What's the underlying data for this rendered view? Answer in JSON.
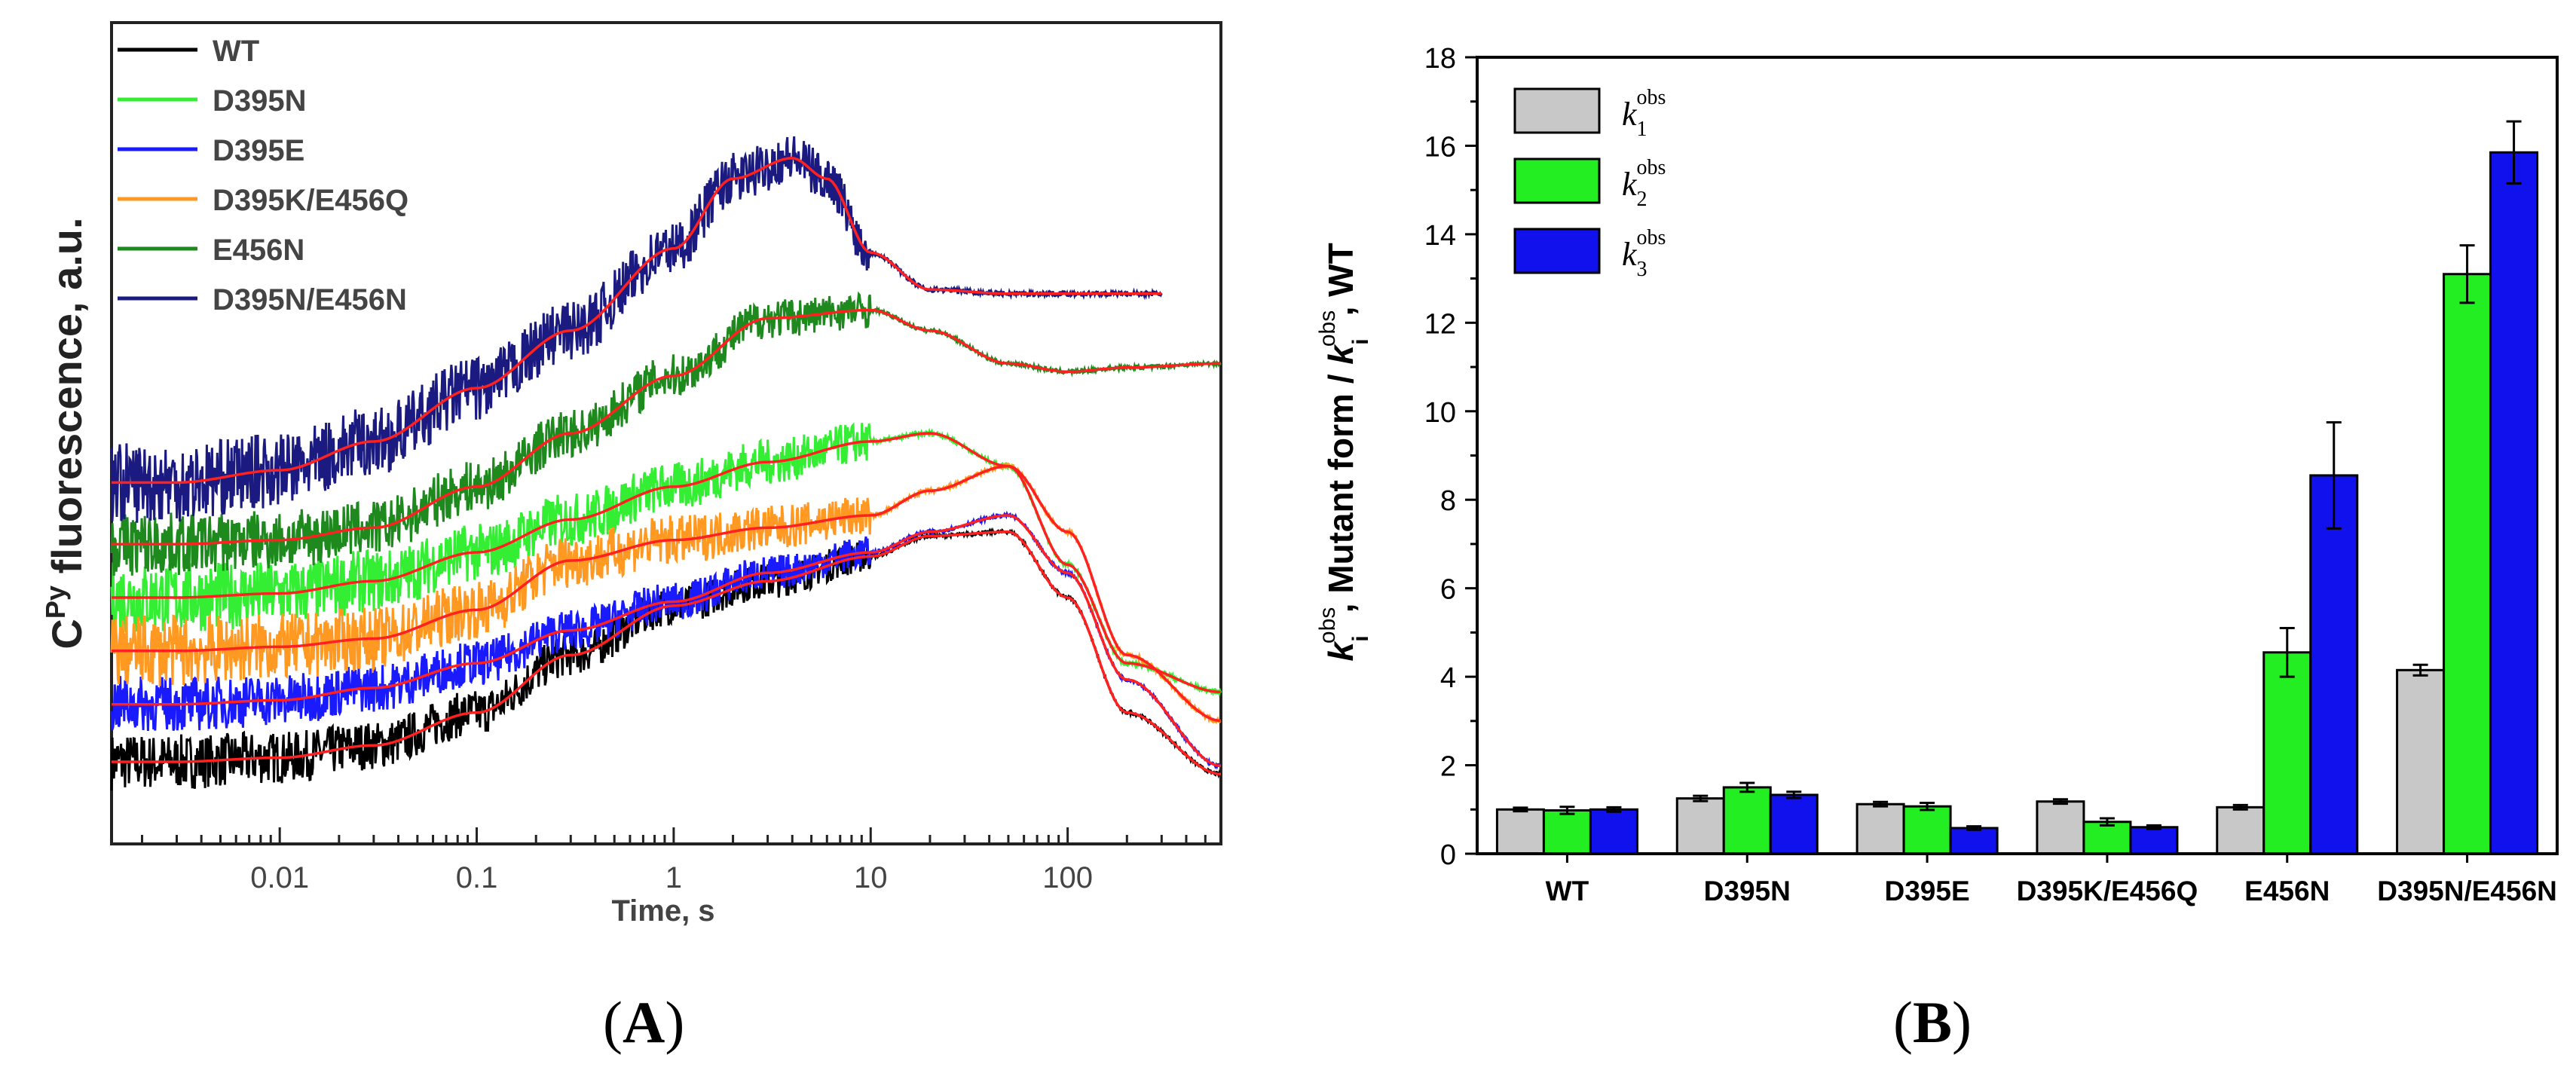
{
  "panels": {
    "a_label": "A",
    "b_label": "B"
  },
  "panel_a": {
    "y_label_base": "C",
    "y_label_sup": "Py",
    "y_label_rest": " fluorescence, a.u.",
    "x_label": "Time, s",
    "x_ticks": [
      "0.01",
      "0.1",
      "1",
      "10",
      "100"
    ],
    "legend": [
      "WT",
      "D395N",
      "D395E",
      "D395K/E456Q",
      "E456N",
      "D395N/E456N"
    ],
    "fit_color": "#ff2020"
  },
  "chart_data": [
    {
      "type": "line",
      "title": "",
      "xlabel": "Time, s",
      "ylabel": "CPy fluorescence, a.u.",
      "xscale": "log",
      "xlim": [
        0.0014,
        600
      ],
      "ylim": [
        0,
        10
      ],
      "x_ticks": [
        0.01,
        0.1,
        1,
        10,
        100
      ],
      "legend_position": "top-left",
      "series": [
        {
          "name": "WT",
          "color": "#000000",
          "noise": 0.35,
          "x": [
            0.0014,
            0.003,
            0.01,
            0.03,
            0.1,
            0.3,
            1,
            3,
            10,
            20,
            50,
            100,
            200,
            600
          ],
          "y": [
            1.0,
            1.0,
            1.05,
            1.2,
            1.6,
            2.3,
            2.9,
            3.2,
            3.5,
            3.75,
            3.8,
            3.0,
            1.6,
            0.85
          ]
        },
        {
          "name": "D395N",
          "color": "#33ee33",
          "noise": 0.45,
          "x": [
            0.0014,
            0.003,
            0.01,
            0.03,
            0.1,
            0.3,
            1,
            3,
            10,
            20,
            50,
            100,
            200,
            600
          ],
          "y": [
            3.0,
            3.0,
            3.05,
            3.2,
            3.55,
            3.95,
            4.35,
            4.65,
            4.9,
            5.0,
            4.6,
            3.4,
            2.2,
            1.85
          ]
        },
        {
          "name": "D395E",
          "color": "#1a1aff",
          "noise": 0.35,
          "x": [
            0.0014,
            0.003,
            0.01,
            0.03,
            0.1,
            0.3,
            1,
            3,
            10,
            20,
            50,
            100,
            200,
            600
          ],
          "y": [
            1.7,
            1.7,
            1.75,
            1.9,
            2.2,
            2.6,
            2.95,
            3.3,
            3.55,
            3.8,
            4.0,
            3.3,
            2.0,
            0.95
          ]
        },
        {
          "name": "D395K/E456Q",
          "color": "#ff9922",
          "noise": 0.45,
          "x": [
            0.0014,
            0.003,
            0.01,
            0.03,
            0.1,
            0.3,
            1,
            3,
            10,
            20,
            50,
            100,
            200,
            600
          ],
          "y": [
            2.35,
            2.35,
            2.4,
            2.5,
            2.85,
            3.45,
            3.7,
            3.85,
            4.0,
            4.3,
            4.6,
            3.8,
            2.3,
            1.5
          ]
        },
        {
          "name": "E456N",
          "color": "#1e8a1e",
          "noise": 0.4,
          "x": [
            0.0014,
            0.003,
            0.01,
            0.03,
            0.1,
            0.3,
            1,
            3,
            10,
            20,
            50,
            100,
            200,
            600
          ],
          "y": [
            3.65,
            3.65,
            3.7,
            3.85,
            4.35,
            5.0,
            5.7,
            6.4,
            6.5,
            6.25,
            5.85,
            5.75,
            5.8,
            5.85
          ]
        },
        {
          "name": "D395N/E456N",
          "color": "#1a1a80",
          "noise": 0.5,
          "x": [
            0.0014,
            0.003,
            0.01,
            0.03,
            0.1,
            0.3,
            1,
            2,
            4,
            6,
            10,
            20,
            50,
            100,
            300
          ],
          "y": [
            4.4,
            4.4,
            4.55,
            4.9,
            5.55,
            6.25,
            7.25,
            8.1,
            8.35,
            8.1,
            7.2,
            6.75,
            6.7,
            6.7,
            6.7
          ]
        }
      ]
    },
    {
      "type": "bar",
      "title": "",
      "xlabel": "",
      "ylabel": "k_i^obs, Mutant form / k_i^obs, WT",
      "ylim": [
        0,
        18
      ],
      "y_ticks": [
        0,
        2,
        4,
        6,
        8,
        10,
        12,
        14,
        16,
        18
      ],
      "categories": [
        "WT",
        "D395N",
        "D395E",
        "D395K/E456Q",
        "E456N",
        "D395N/E456N"
      ],
      "legend_position": "top-left",
      "series": [
        {
          "name": "k1obs",
          "label_base": "k",
          "label_sub": "1",
          "label_sup": "obs",
          "color": "#c8c8c8",
          "values": [
            1.0,
            1.25,
            1.12,
            1.18,
            1.05,
            4.15
          ],
          "errors": [
            0.04,
            0.06,
            0.05,
            0.05,
            0.05,
            0.12
          ]
        },
        {
          "name": "k2obs",
          "label_base": "k",
          "label_sub": "2",
          "label_sup": "obs",
          "color": "#22ee22",
          "values": [
            0.98,
            1.5,
            1.07,
            0.72,
            4.55,
            13.1
          ],
          "errors": [
            0.08,
            0.1,
            0.08,
            0.08,
            0.55,
            0.65
          ]
        },
        {
          "name": "k3obs",
          "label_base": "k",
          "label_sub": "3",
          "label_sup": "obs",
          "color": "#1111ee",
          "values": [
            1.0,
            1.33,
            0.58,
            0.6,
            8.55,
            15.85
          ],
          "errors": [
            0.05,
            0.07,
            0.04,
            0.04,
            1.2,
            0.7
          ]
        }
      ],
      "y_label_parts": {
        "k_base": "k",
        "i_sub": "i",
        "obs_sup": "obs",
        "middle": ", Mutant form / ",
        "end": ", WT"
      }
    }
  ]
}
